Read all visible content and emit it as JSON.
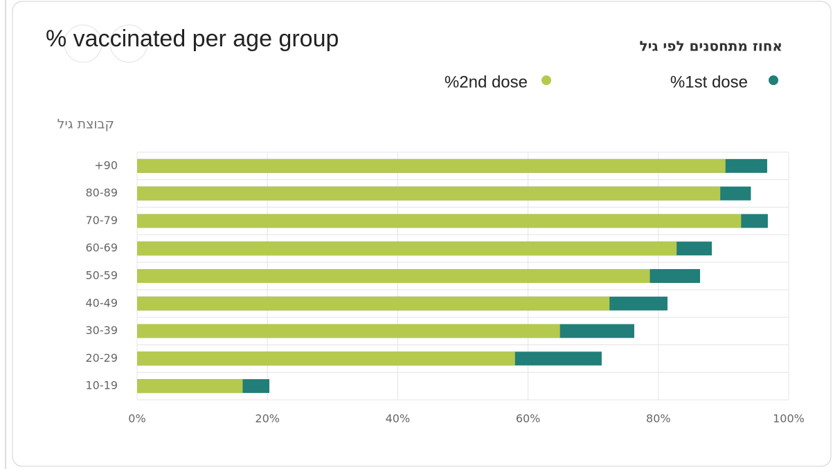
{
  "chart_data": {
    "type": "bar",
    "orientation": "horizontal",
    "title": "% vaccinated per age group",
    "subtitle": "אחוז מתחסנים לפי גיל",
    "y_label": "קבוצת גיל",
    "categories": [
      "+90",
      "80-89",
      "70-79",
      "60-69",
      "50-59",
      "40-49",
      "30-39",
      "20-29",
      "10-19"
    ],
    "series": [
      {
        "name": "%1st dose",
        "color": "#217e78",
        "values": [
          96.7,
          94.2,
          96.8,
          88.2,
          86.4,
          81.4,
          76.3,
          71.3,
          20.3
        ]
      },
      {
        "name": "%2nd dose",
        "color": "#b5c94f",
        "values": [
          90.3,
          89.5,
          92.7,
          82.8,
          78.7,
          72.5,
          64.9,
          58.0,
          16.2
        ]
      }
    ],
    "xlim": [
      0,
      100
    ],
    "xticks": [
      {
        "value": 0,
        "label": "0%"
      },
      {
        "value": 20,
        "label": "20%"
      },
      {
        "value": 40,
        "label": "40%"
      },
      {
        "value": 60,
        "label": "60%"
      },
      {
        "value": 80,
        "label": "80%"
      },
      {
        "value": 100,
        "label": "100%"
      }
    ],
    "grid": true
  }
}
